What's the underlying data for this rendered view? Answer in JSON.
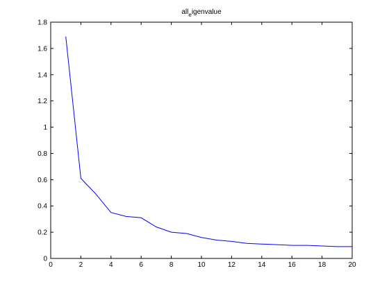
{
  "chart_data": {
    "type": "line",
    "title_main": "all",
    "title_sub": "e",
    "title_rest": "igenvalue",
    "x_ticks": [
      "0",
      "2",
      "4",
      "6",
      "8",
      "10",
      "12",
      "14",
      "16",
      "18",
      "20"
    ],
    "y_ticks": [
      "0",
      "0.2",
      "0.4",
      "0.6",
      "0.8",
      "1",
      "1.2",
      "1.4",
      "1.6",
      "1.8"
    ],
    "xlim": [
      0,
      20
    ],
    "ylim": [
      0,
      1.8
    ],
    "grid": false,
    "series": [
      {
        "color": "#0000ff",
        "x": [
          1,
          2,
          3,
          4,
          5,
          6,
          7,
          8,
          9,
          10,
          11,
          12,
          13,
          14,
          15,
          16,
          17,
          18,
          19,
          20
        ],
        "y": [
          1.69,
          0.61,
          0.49,
          0.35,
          0.32,
          0.31,
          0.24,
          0.2,
          0.19,
          0.16,
          0.14,
          0.13,
          0.115,
          0.11,
          0.105,
          0.1,
          0.1,
          0.095,
          0.09,
          0.09
        ]
      }
    ]
  }
}
